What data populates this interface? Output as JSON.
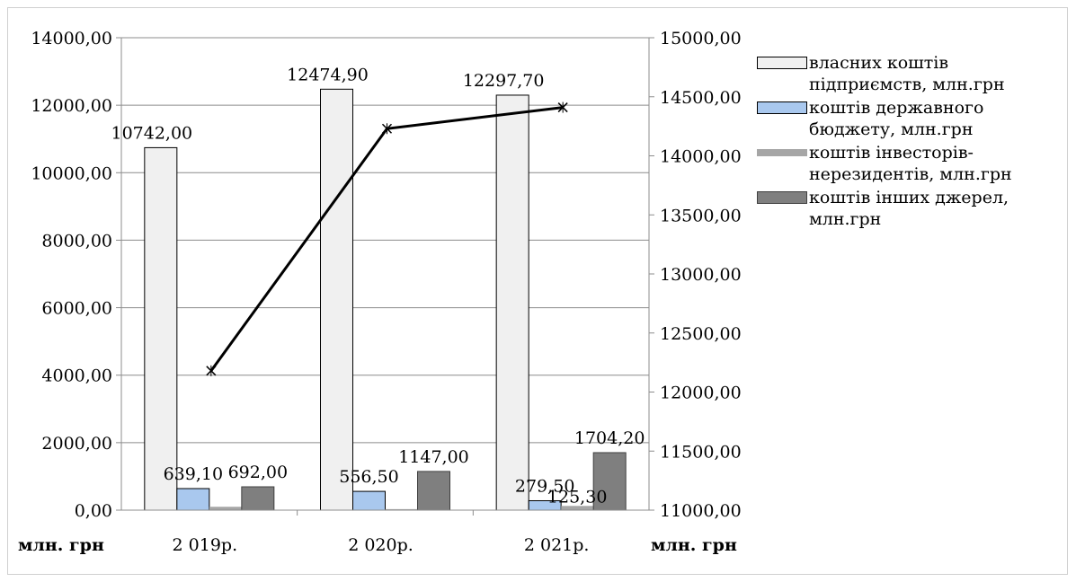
{
  "chart_data": {
    "type": "bar",
    "categories": [
      "2 019р.",
      "2 020р.",
      "2 021р."
    ],
    "series": [
      {
        "name": "власних коштів підприємств, млн.грн",
        "values": [
          10742.0,
          12474.9,
          12297.7
        ],
        "labels": [
          "10742,00",
          "12474,90",
          "12297,70"
        ],
        "color": "#f0f0f0",
        "stroke": "#000000"
      },
      {
        "name": "коштів державного бюджету, млн.грн",
        "values": [
          639.1,
          556.5,
          279.5
        ],
        "labels": [
          "639,10",
          "556,50",
          "279,50"
        ],
        "color": "#a9c8ee",
        "stroke": "#000000"
      },
      {
        "name": "коштів інвесторів-нерезидентів, млн.грн",
        "values": [
          100,
          30,
          125.3
        ],
        "labels": [
          "",
          "",
          "125,30"
        ],
        "color": "#a6a6a6",
        "stroke": "none"
      },
      {
        "name": "коштів інших джерел, млн.грн",
        "values": [
          692.0,
          1147.0,
          1704.2
        ],
        "labels": [
          "692,00",
          "1147,00",
          "1704,20"
        ],
        "color": "#7f7f7f",
        "stroke": "#404040"
      }
    ],
    "line": {
      "values": [
        12180,
        14230,
        14410
      ],
      "axis": "right",
      "color": "#000000",
      "marker": "x"
    },
    "ylim": [
      0,
      14000
    ],
    "y_ticks": [
      "0,00",
      "2000,00",
      "4000,00",
      "6000,00",
      "8000,00",
      "10000,00",
      "12000,00",
      "14000,00"
    ],
    "y2lim": [
      11000,
      15000
    ],
    "y2_ticks": [
      "11000,00",
      "11500,00",
      "12000,00",
      "12500,00",
      "13000,00",
      "13500,00",
      "14000,00",
      "14500,00",
      "15000,00"
    ],
    "xlabel": "млн. грн",
    "y2label": "млн. грн",
    "grid": true,
    "legend_position": "right"
  }
}
